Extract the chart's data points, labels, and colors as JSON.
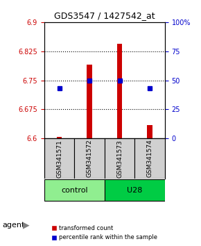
{
  "title": "GDS3547 / 1427542_at",
  "samples": [
    "GSM341571",
    "GSM341572",
    "GSM341573",
    "GSM341574"
  ],
  "red_values": [
    6.605,
    6.79,
    6.845,
    6.635
  ],
  "blue_percentiles": [
    43,
    50,
    50,
    43
  ],
  "ylim_left": [
    6.6,
    6.9
  ],
  "ylim_right": [
    0,
    100
  ],
  "yticks_left": [
    6.6,
    6.675,
    6.75,
    6.825,
    6.9
  ],
  "ytick_labels_left": [
    "6.6",
    "6.675",
    "6.75",
    "6.825",
    "6.9"
  ],
  "yticks_right": [
    0,
    25,
    50,
    75,
    100
  ],
  "ytick_labels_right": [
    "0",
    "25",
    "50",
    "75",
    "100%"
  ],
  "hlines": [
    6.675,
    6.75,
    6.825
  ],
  "groups": [
    {
      "label": "control",
      "indices": [
        0,
        1
      ],
      "color": "#90EE90"
    },
    {
      "label": "U28",
      "indices": [
        2,
        3
      ],
      "color": "#00CC44"
    }
  ],
  "agent_label": "agent",
  "bar_bottom": 6.6,
  "red_color": "#CC0000",
  "blue_color": "#0000CC",
  "legend_red": "transformed count",
  "legend_blue": "percentile rank within the sample",
  "bar_width": 0.5,
  "background_color": "#ffffff",
  "plot_bg": "#ffffff",
  "grid_color": "#000000"
}
